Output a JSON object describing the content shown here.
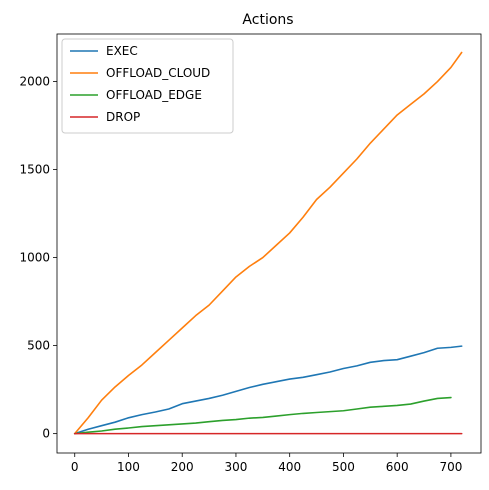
{
  "chart_data": {
    "type": "line",
    "title": "Actions",
    "xlabel": "",
    "ylabel": "",
    "xlim": [
      -33,
      756
    ],
    "ylim": [
      -110,
      2270
    ],
    "xticks": [
      0,
      100,
      200,
      300,
      400,
      500,
      600,
      700
    ],
    "yticks": [
      0,
      500,
      1000,
      1500,
      2000
    ],
    "legend_position": "top-left",
    "series": [
      {
        "name": "EXEC",
        "color": "#1f77b4",
        "x": [
          0,
          25,
          50,
          75,
          100,
          125,
          150,
          175,
          200,
          225,
          250,
          275,
          300,
          325,
          350,
          375,
          400,
          425,
          450,
          475,
          500,
          525,
          550,
          575,
          600,
          625,
          650,
          675,
          700,
          720
        ],
        "y": [
          0,
          25,
          45,
          65,
          90,
          108,
          123,
          140,
          170,
          185,
          200,
          218,
          240,
          262,
          280,
          295,
          310,
          320,
          335,
          350,
          370,
          385,
          405,
          415,
          420,
          440,
          460,
          485,
          490,
          497
        ]
      },
      {
        "name": "OFFLOAD_CLOUD",
        "color": "#ff7f0e",
        "x": [
          0,
          25,
          50,
          75,
          100,
          125,
          150,
          175,
          200,
          225,
          250,
          275,
          300,
          325,
          350,
          375,
          400,
          425,
          450,
          475,
          500,
          525,
          550,
          575,
          600,
          625,
          650,
          675,
          700,
          720
        ],
        "y": [
          0,
          90,
          190,
          265,
          330,
          390,
          460,
          530,
          600,
          670,
          730,
          810,
          890,
          950,
          1000,
          1070,
          1140,
          1230,
          1330,
          1400,
          1480,
          1560,
          1650,
          1730,
          1810,
          1870,
          1930,
          2000,
          2080,
          2165
        ]
      },
      {
        "name": "OFFLOAD_EDGE",
        "color": "#2ca02c",
        "x": [
          0,
          25,
          50,
          75,
          100,
          125,
          150,
          175,
          200,
          225,
          250,
          275,
          300,
          325,
          350,
          375,
          400,
          425,
          450,
          475,
          500,
          525,
          550,
          575,
          600,
          625,
          650,
          675,
          700
        ],
        "y": [
          0,
          8,
          15,
          25,
          32,
          40,
          45,
          50,
          55,
          60,
          68,
          75,
          80,
          88,
          92,
          100,
          108,
          115,
          120,
          125,
          130,
          140,
          150,
          155,
          160,
          168,
          185,
          200,
          205
        ]
      },
      {
        "name": "DROP",
        "color": "#d62728",
        "x": [
          0,
          720
        ],
        "y": [
          0,
          0
        ]
      }
    ]
  }
}
